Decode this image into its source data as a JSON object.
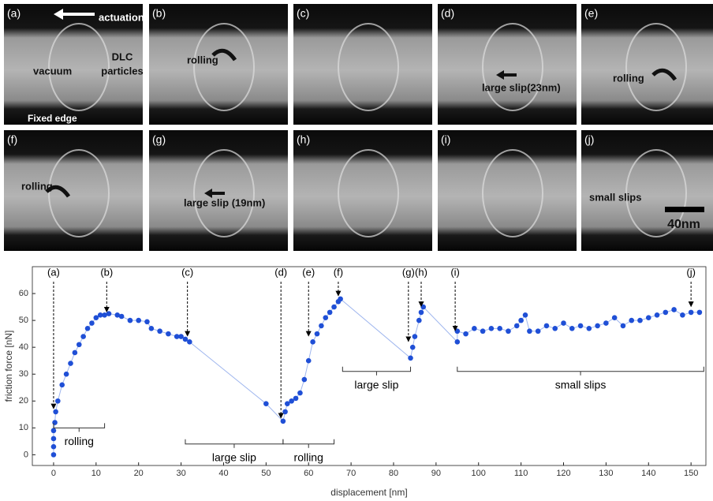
{
  "panels": [
    {
      "label": "(a)",
      "texts": [
        "actuation",
        "vacuum",
        "DLC",
        "particles",
        "Fixed edge"
      ]
    },
    {
      "label": "(b)",
      "texts": [
        "rolling"
      ]
    },
    {
      "label": "(c)",
      "texts": []
    },
    {
      "label": "(d)",
      "texts": [
        "large slip(23nm)"
      ]
    },
    {
      "label": "(e)",
      "texts": [
        "rolling"
      ]
    },
    {
      "label": "(f)",
      "texts": [
        "rolling"
      ]
    },
    {
      "label": "(g)",
      "texts": [
        "large slip (19nm)"
      ]
    },
    {
      "label": "(h)",
      "texts": []
    },
    {
      "label": "(i)",
      "texts": []
    },
    {
      "label": "(j)",
      "texts": [
        "small slips",
        "40nm"
      ]
    }
  ],
  "chart_data": {
    "type": "scatter",
    "x_label": "displacement [nm]",
    "y_label": "friction force [nN]",
    "xlim": [
      -5,
      153.5
    ],
    "ylim": [
      -4,
      70
    ],
    "xticks": [
      0,
      10,
      20,
      30,
      40,
      50,
      60,
      70,
      80,
      90,
      100,
      110,
      120,
      130,
      140,
      150
    ],
    "yticks": [
      0,
      10,
      20,
      30,
      40,
      50,
      60
    ],
    "series": [
      {
        "color": "#1f4fd6",
        "x": [
          0,
          0,
          0,
          0,
          0.3,
          0.5,
          1,
          2,
          3,
          4,
          5,
          6,
          7,
          8,
          9,
          10,
          11,
          12,
          13,
          15,
          16,
          18,
          20,
          22,
          23,
          25,
          27,
          29,
          30,
          31,
          32,
          50,
          54,
          54.5,
          55,
          56,
          57,
          58,
          59,
          60,
          61,
          62,
          63,
          64,
          65,
          66,
          67,
          67.5,
          84,
          84.5,
          85,
          86,
          86.5,
          87,
          95,
          95,
          97,
          99,
          101,
          103,
          105,
          107,
          109,
          110,
          111,
          112,
          114,
          116,
          118,
          120,
          122,
          124,
          126,
          128,
          130,
          132,
          134,
          136,
          138,
          140,
          142,
          144,
          146,
          148,
          150,
          152
        ],
        "values": [
          0,
          3,
          6,
          9,
          12,
          16,
          20,
          26,
          30,
          34,
          38,
          41,
          44,
          47,
          49,
          51,
          52,
          52,
          52.5,
          52,
          51.5,
          50,
          50,
          49.5,
          47,
          46,
          45,
          44,
          44,
          43,
          42,
          19,
          12.5,
          16,
          19,
          20,
          21,
          23,
          28,
          35,
          42,
          45,
          48,
          51,
          53,
          55,
          57,
          58,
          36,
          40,
          44,
          50,
          53,
          55,
          42,
          46,
          45,
          47,
          46,
          47,
          47,
          46,
          48,
          50,
          52,
          46,
          46,
          48,
          47,
          49,
          47,
          48,
          47,
          48,
          49,
          51,
          48,
          50,
          50,
          51,
          52,
          53,
          54,
          52,
          53,
          53
        ]
      }
    ],
    "annotations": [
      {
        "text": "(a)",
        "x": 0,
        "y": 16
      },
      {
        "text": "(b)",
        "x": 12.5,
        "y": 52
      },
      {
        "text": "(c)",
        "x": 31.5,
        "y": 43
      },
      {
        "text": "(d)",
        "x": 53.5,
        "y": 12.5
      },
      {
        "text": "(e)",
        "x": 60,
        "y": 43
      },
      {
        "text": "(f)",
        "x": 67,
        "y": 58
      },
      {
        "text": "(g)",
        "x": 83.5,
        "y": 41
      },
      {
        "text": "(h)",
        "x": 86.5,
        "y": 54
      },
      {
        "text": "(i)",
        "x": 94.5,
        "y": 45
      },
      {
        "text": "(j)",
        "x": 150,
        "y": 54
      }
    ],
    "brackets": [
      {
        "text": "rolling",
        "x0": 0,
        "x1": 12,
        "y": 10
      },
      {
        "text": "large slip",
        "x0": 31,
        "x1": 54,
        "y": 4
      },
      {
        "text": "rolling",
        "x0": 54,
        "x1": 66,
        "y": 4
      },
      {
        "text": "large slip",
        "x0": 68,
        "x1": 84,
        "y": 31
      },
      {
        "text": "small slips",
        "x0": 95,
        "x1": 153,
        "y": 31
      }
    ]
  }
}
